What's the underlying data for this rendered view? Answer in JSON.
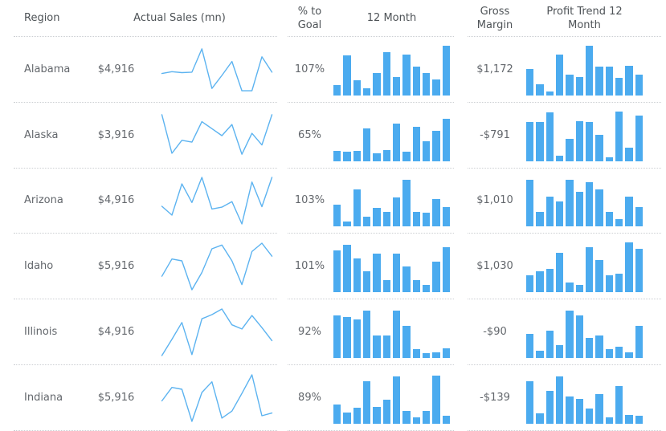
{
  "colors": {
    "accent": "#4babef",
    "sparkline": "#5cb3f0",
    "text": "#63676c",
    "header_text": "#4e5357",
    "separator": "#cbced2"
  },
  "chart_data": {
    "type": "table",
    "title": "Regional sales KPI table with 12-month sparklines",
    "columns": [
      "Region",
      "Actual Sales (mn)",
      "% to Goal",
      "12 Month",
      "Gross Margin",
      "Profit Trend 12 Month"
    ],
    "sparkline_scale": "normalized_0_to_1_12_monthly_points",
    "rows": [
      {
        "region": "Alabama",
        "actual_sales": "$4,916",
        "sales_sparkline": [
          0.42,
          0.46,
          0.44,
          0.45,
          0.95,
          0.1,
          0.38,
          0.68,
          0.05,
          0.05,
          0.78,
          0.45
        ],
        "pct_to_goal": "107%",
        "twelve_month_bars": [
          0.21,
          0.8,
          0.3,
          0.14,
          0.45,
          0.86,
          0.37,
          0.82,
          0.58,
          0.45,
          0.32,
          1.0
        ],
        "gross_margin": "$1,172",
        "profit_trend_bars": [
          0.53,
          0.23,
          0.08,
          0.82,
          0.41,
          0.37,
          1.0,
          0.57,
          0.57,
          0.35,
          0.59,
          0.42
        ]
      },
      {
        "region": "Alaska",
        "actual_sales": "$3,916",
        "sales_sparkline": [
          0.95,
          0.12,
          0.4,
          0.36,
          0.8,
          0.65,
          0.5,
          0.74,
          0.1,
          0.55,
          0.3,
          0.95
        ],
        "pct_to_goal": "65%",
        "twelve_month_bars": [
          0.2,
          0.18,
          0.2,
          0.65,
          0.15,
          0.22,
          0.75,
          0.18,
          0.68,
          0.4,
          0.6,
          0.85
        ],
        "gross_margin": "-$791",
        "profit_trend_bars": [
          0.78,
          0.79,
          0.97,
          0.1,
          0.45,
          0.8,
          0.78,
          0.52,
          0.08,
          1.0,
          0.27,
          0.92
        ]
      },
      {
        "region": "Arizona",
        "actual_sales": "$4,916",
        "sales_sparkline": [
          0.38,
          0.19,
          0.86,
          0.46,
          1.0,
          0.32,
          0.36,
          0.48,
          0.0,
          0.9,
          0.37,
          1.0
        ],
        "pct_to_goal": "103%",
        "twelve_month_bars": [
          0.45,
          0.1,
          0.75,
          0.2,
          0.38,
          0.3,
          0.58,
          0.95,
          0.3,
          0.28,
          0.55,
          0.4
        ],
        "gross_margin": "$1,010",
        "profit_trend_bars": [
          0.95,
          0.3,
          0.6,
          0.5,
          0.95,
          0.7,
          0.9,
          0.75,
          0.3,
          0.15,
          0.6,
          0.4
        ]
      },
      {
        "region": "Idaho",
        "actual_sales": "$5,916",
        "sales_sparkline": [
          0.29,
          0.66,
          0.62,
          0.0,
          0.37,
          0.88,
          0.96,
          0.62,
          0.11,
          0.82,
          1.0,
          0.72
        ],
        "pct_to_goal": "101%",
        "twelve_month_bars": [
          0.85,
          0.95,
          0.68,
          0.42,
          0.78,
          0.25,
          0.78,
          0.52,
          0.25,
          0.15,
          0.62,
          0.9
        ],
        "gross_margin": "$1,030",
        "profit_trend_bars": [
          0.35,
          0.42,
          0.47,
          0.8,
          0.2,
          0.15,
          0.9,
          0.65,
          0.35,
          0.37,
          1.0,
          0.88
        ]
      },
      {
        "region": "Illinois",
        "actual_sales": "$4,916",
        "sales_sparkline": [
          0.0,
          0.35,
          0.71,
          0.02,
          0.79,
          0.88,
          1.0,
          0.66,
          0.57,
          0.86,
          0.6,
          0.32
        ],
        "pct_to_goal": "92%",
        "twelve_month_bars": [
          0.85,
          0.82,
          0.78,
          0.95,
          0.45,
          0.45,
          0.95,
          0.65,
          0.18,
          0.1,
          0.12,
          0.2
        ],
        "gross_margin": "-$90",
        "profit_trend_bars": [
          0.48,
          0.15,
          0.55,
          0.25,
          0.95,
          0.85,
          0.4,
          0.45,
          0.18,
          0.22,
          0.12,
          0.65
        ]
      },
      {
        "region": "Indiana",
        "actual_sales": "$5,916",
        "sales_sparkline": [
          0.44,
          0.73,
          0.69,
          0.0,
          0.62,
          0.85,
          0.07,
          0.22,
          0.6,
          1.0,
          0.12,
          0.18
        ],
        "pct_to_goal": "89%",
        "twelve_month_bars": [
          0.38,
          0.22,
          0.32,
          0.85,
          0.33,
          0.48,
          0.95,
          0.25,
          0.12,
          0.25,
          0.97,
          0.15
        ],
        "gross_margin": "-$139",
        "profit_trend_bars": [
          0.85,
          0.2,
          0.65,
          0.95,
          0.55,
          0.5,
          0.3,
          0.6,
          0.12,
          0.75,
          0.18,
          0.15
        ]
      }
    ]
  }
}
